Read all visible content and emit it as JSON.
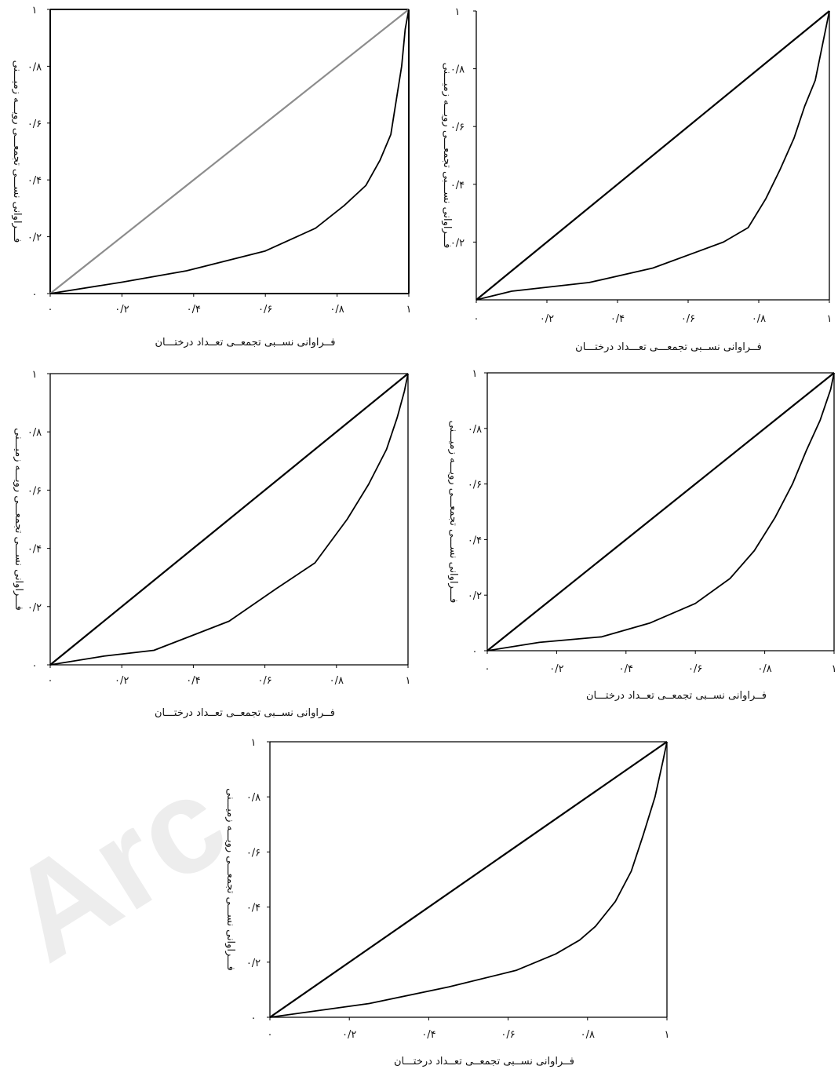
{
  "watermark": "Arc",
  "chart_data": [
    {
      "type": "line",
      "xlabel": "فــراوانی نســبی تجمعــی تعــداد درختـــان",
      "ylabel": "فـــراوانی نســـی تجمعـــی رویـــه زمیـــنی",
      "xlim": [
        0,
        1
      ],
      "ylim": [
        0,
        1
      ],
      "x_ticks": [
        "۰",
        "۰/۲",
        "۰/۴",
        "۰/۶",
        "۰/۸",
        "۱"
      ],
      "y_ticks": [
        "۰",
        "۰/۲",
        "۰/۴",
        "۰/۶",
        "۰/۸",
        "۱"
      ],
      "series": [
        {
          "role": "equality",
          "color": "#8c8c8c",
          "x": [
            0,
            1
          ],
          "y": [
            0,
            1
          ]
        },
        {
          "role": "lorenz",
          "color": "#000000",
          "x": [
            0,
            0.2,
            0.38,
            0.6,
            0.74,
            0.82,
            0.88,
            0.92,
            0.95,
            0.965,
            0.98,
            0.99,
            1.0
          ],
          "y": [
            0,
            0.04,
            0.08,
            0.15,
            0.23,
            0.31,
            0.38,
            0.47,
            0.56,
            0.68,
            0.8,
            0.93,
            1.0
          ]
        }
      ]
    },
    {
      "type": "line",
      "xlabel": "فــراوانی نســبی تجمعـــی تعـــداد درختـــان",
      "ylabel": "فـــراوانی نســـبی تجمعـــی رویـــه زمیـــنی",
      "xlim": [
        0,
        1
      ],
      "ylim": [
        0,
        1
      ],
      "x_ticks": [
        "۰",
        "۰/۲",
        "۰/۴",
        "۰/۶",
        "۰/۸",
        "۱"
      ],
      "y_ticks": [
        "۰/۲",
        "۰/۴",
        "۰/۶",
        "۰/۸",
        "۱"
      ],
      "series": [
        {
          "role": "equality",
          "color": "#000000",
          "x": [
            0,
            1
          ],
          "y": [
            0,
            1
          ]
        },
        {
          "role": "lorenz",
          "color": "#000000",
          "x": [
            0,
            0.1,
            0.32,
            0.5,
            0.7,
            0.77,
            0.82,
            0.86,
            0.9,
            0.93,
            0.96,
            0.98,
            1.0
          ],
          "y": [
            0,
            0.03,
            0.06,
            0.11,
            0.2,
            0.25,
            0.35,
            0.45,
            0.56,
            0.67,
            0.76,
            0.88,
            1.0
          ]
        }
      ]
    },
    {
      "type": "line",
      "xlabel": "فــراوانی نســبی تجمعــی تعــداد درختـــان",
      "ylabel": "فـــراوانی نســـی تجمعـــی رویـــه زمیـــنی",
      "xlim": [
        0,
        1
      ],
      "ylim": [
        0,
        1
      ],
      "x_ticks": [
        "۰",
        "۰/۲",
        "۰/۴",
        "۰/۶",
        "۰/۸",
        "۱"
      ],
      "y_ticks": [
        "۰",
        "۰/۲",
        "۰/۴",
        "۰/۶",
        "۰/۸",
        "۱"
      ],
      "series": [
        {
          "role": "equality",
          "color": "#000000",
          "x": [
            0,
            1
          ],
          "y": [
            0,
            1
          ]
        },
        {
          "role": "lorenz",
          "color": "#000000",
          "x": [
            0,
            0.15,
            0.29,
            0.5,
            0.63,
            0.74,
            0.83,
            0.89,
            0.94,
            0.97,
            0.99,
            1.0
          ],
          "y": [
            0,
            0.03,
            0.05,
            0.15,
            0.26,
            0.35,
            0.5,
            0.62,
            0.74,
            0.85,
            0.94,
            1.0
          ]
        }
      ]
    },
    {
      "type": "line",
      "xlabel": "فــراوانی نســبی تجمعــی تعــداد درختـــان",
      "ylabel": "فـــراوانی نســـی تجمعـــی رویـــه زمیـــنی",
      "xlim": [
        0,
        1
      ],
      "ylim": [
        0,
        1
      ],
      "x_ticks": [
        "۰",
        "۰/۲",
        "۰/۴",
        "۰/۶",
        "۰/۸",
        "۱"
      ],
      "y_ticks": [
        "۰",
        "۰/۲",
        "۰/۴",
        "۰/۶",
        "۰/۸",
        "۱"
      ],
      "series": [
        {
          "role": "equality",
          "color": "#000000",
          "x": [
            0,
            1
          ],
          "y": [
            0,
            1
          ]
        },
        {
          "role": "lorenz",
          "color": "#000000",
          "x": [
            0,
            0.15,
            0.33,
            0.47,
            0.6,
            0.7,
            0.77,
            0.83,
            0.88,
            0.92,
            0.96,
            0.99,
            1.0
          ],
          "y": [
            0,
            0.03,
            0.05,
            0.1,
            0.17,
            0.26,
            0.36,
            0.48,
            0.6,
            0.72,
            0.83,
            0.94,
            1.0
          ]
        }
      ]
    },
    {
      "type": "line",
      "xlabel": "فــراوانی نســبی تجمعــی تعــداد درختـــان",
      "ylabel": "فـــراوانی نســـی تجمعـــی رویـــه زمیـــنی",
      "xlim": [
        0,
        1
      ],
      "ylim": [
        0,
        1
      ],
      "x_ticks": [
        "۰",
        "۰/۲",
        "۰/۴",
        "۰/۶",
        "۰/۸",
        "۱"
      ],
      "y_ticks": [
        "۰",
        "۰/۲",
        "۰/۴",
        "۰/۶",
        "۰/۸",
        "۱"
      ],
      "series": [
        {
          "role": "equality",
          "color": "#000000",
          "x": [
            0,
            1
          ],
          "y": [
            0,
            1
          ]
        },
        {
          "role": "lorenz",
          "color": "#000000",
          "x": [
            0,
            0.25,
            0.45,
            0.62,
            0.72,
            0.78,
            0.82,
            0.87,
            0.91,
            0.94,
            0.97,
            0.99,
            1.0
          ],
          "y": [
            0,
            0.05,
            0.11,
            0.17,
            0.23,
            0.28,
            0.33,
            0.42,
            0.53,
            0.66,
            0.8,
            0.93,
            1.0
          ]
        }
      ]
    }
  ]
}
